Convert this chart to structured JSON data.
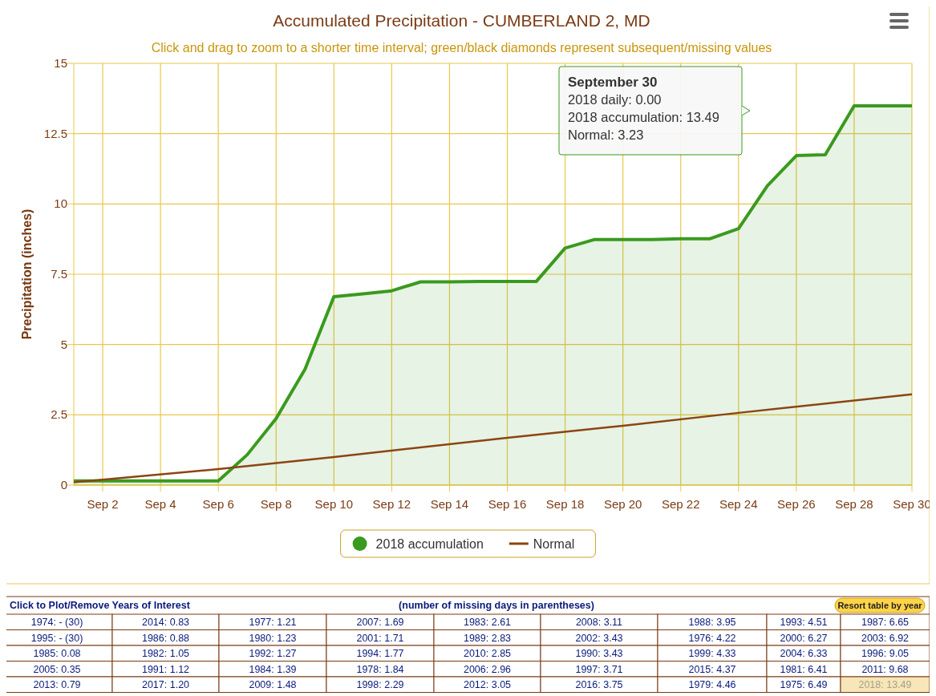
{
  "chart_data": {
    "type": "area",
    "title": "Accumulated Precipitation - CUMBERLAND 2, MD",
    "subtitle": "Click and drag to zoom to a shorter time interval; green/black diamonds represent subsequent/missing values",
    "ylabel": "Precipitation (inches)",
    "x": [
      "--09-01",
      "--09-02",
      "--09-03",
      "--09-04",
      "--09-05",
      "--09-06",
      "--09-07",
      "--09-08",
      "--09-09",
      "--09-10",
      "--09-11",
      "--09-12",
      "--09-13",
      "--09-14",
      "--09-15",
      "--09-16",
      "--09-17",
      "--09-18",
      "--09-19",
      "--09-20",
      "--09-21",
      "--09-22",
      "--09-23",
      "--09-24",
      "--09-25",
      "--09-26",
      "--09-27",
      "--09-28",
      "--09-29",
      "--09-30"
    ],
    "xlim": [
      "--09-01",
      "--09-30"
    ],
    "xticks": [
      {
        "value": "--09-02",
        "label": "Sep 2"
      },
      {
        "value": "--09-04",
        "label": "Sep 4"
      },
      {
        "value": "--09-06",
        "label": "Sep 6"
      },
      {
        "value": "--09-08",
        "label": "Sep 8"
      },
      {
        "value": "--09-10",
        "label": "Sep 10"
      },
      {
        "value": "--09-12",
        "label": "Sep 12"
      },
      {
        "value": "--09-14",
        "label": "Sep 14"
      },
      {
        "value": "--09-16",
        "label": "Sep 16"
      },
      {
        "value": "--09-18",
        "label": "Sep 18"
      },
      {
        "value": "--09-20",
        "label": "Sep 20"
      },
      {
        "value": "--09-22",
        "label": "Sep 22"
      },
      {
        "value": "--09-24",
        "label": "Sep 24"
      },
      {
        "value": "--09-26",
        "label": "Sep 26"
      },
      {
        "value": "--09-28",
        "label": "Sep 28"
      },
      {
        "value": "--09-30",
        "label": "Sep 30"
      }
    ],
    "ylim": [
      0,
      15
    ],
    "yticks": [
      0,
      2.5,
      5,
      7.5,
      10,
      12.5,
      15
    ],
    "grid": true,
    "legend": "bottom",
    "series": [
      {
        "name": "2018 accumulation",
        "color": "#3a9a1f",
        "values": [
          0.15,
          0.15,
          0.15,
          0.15,
          0.15,
          0.15,
          1.08,
          2.37,
          4.12,
          6.7,
          6.8,
          6.91,
          7.23,
          7.23,
          7.24,
          7.24,
          7.24,
          8.43,
          8.73,
          8.73,
          8.73,
          8.76,
          8.76,
          9.12,
          10.65,
          11.72,
          11.75,
          13.49,
          13.49,
          13.49
        ]
      },
      {
        "name": "Normal",
        "type": "line",
        "color": "#8b4513",
        "x": [
          "--09-01",
          "--09-06",
          "--09-10",
          "--09-16",
          "--09-20",
          "--09-24",
          "--09-30"
        ],
        "values": [
          0.1,
          0.57,
          1.0,
          1.68,
          2.11,
          2.57,
          3.23
        ]
      }
    ],
    "annotations": [
      "September 30",
      "2018 daily: 0.00",
      "2018 accumulation: 13.49",
      "Normal: 3.23",
      "Click to Plot/Remove Years of Interest",
      "(number of missing days in parentheses)",
      "Resort table by year",
      "1974: - (30)",
      "2014: 0.83",
      "1977: 1.21",
      "2007: 1.69",
      "1983: 2.61",
      "2008: 3.11",
      "1988: 3.95",
      "1993: 4.51",
      "1987: 6.65",
      "1995: - (30)",
      "1986: 0.88",
      "1980: 1.23",
      "2001: 1.71",
      "1989: 2.83",
      "2002: 3.43",
      "1976: 4.22",
      "2000: 6.27",
      "2003: 6.92",
      "1985: 0.08",
      "1982: 1.05",
      "1992: 1.27",
      "1994: 1.77",
      "2010: 2.85",
      "1990: 3.43",
      "1999: 4.33",
      "2004: 6.33",
      "1996: 9.05",
      "2005: 0.35",
      "1991: 1.12",
      "1984: 1.39",
      "1978: 1.84",
      "2006: 2.96",
      "1997: 3.71",
      "2015: 4.37",
      "1981: 6.41",
      "2011: 9.68",
      "2013: 0.79",
      "2017: 1.20",
      "2009: 1.48",
      "1998: 2.29",
      "2012: 3.05",
      "2016: 3.75",
      "1979: 4.46",
      "1975: 6.49",
      "2018: 13.49"
    ]
  }
}
